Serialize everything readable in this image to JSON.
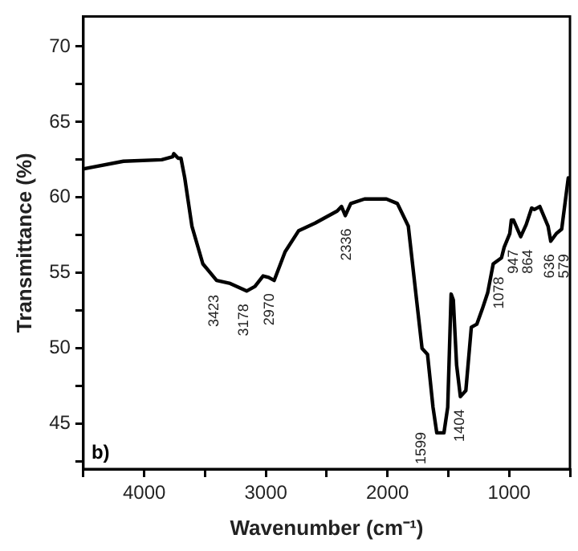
{
  "chart_data": {
    "type": "line",
    "xlabel": "Wavenumber (cm⁻¹)",
    "ylabel": "Transmittance (%)",
    "xlim": [
      4500,
      500
    ],
    "xticks": [
      {
        "value": 4500,
        "label": null
      },
      4000,
      {
        "value": 3500,
        "label": null
      },
      3000,
      {
        "value": 2500,
        "label": null
      },
      2000,
      {
        "value": 1500,
        "label": null
      },
      1000,
      {
        "value": 500,
        "label": null
      }
    ],
    "ylim": [
      42,
      72
    ],
    "yticks": [
      {
        "value": 42.5,
        "label": null
      },
      45,
      {
        "value": 47.5,
        "label": null
      },
      50,
      {
        "value": 52.5,
        "label": null
      },
      55,
      {
        "value": 57.5,
        "label": null
      },
      60,
      {
        "value": 62.5,
        "label": null
      },
      65,
      {
        "value": 67.5,
        "label": null
      },
      70
    ],
    "grid": false,
    "legend": false,
    "marker": "none",
    "line_style": "solid",
    "series": [
      {
        "color": "#000000",
        "x": [
          4495,
          4171,
          3856,
          3766,
          3757,
          3721,
          3698,
          3667,
          3608,
          3518,
          3405,
          3293,
          3158,
          3090,
          3023,
          2977,
          2932,
          2842,
          2730,
          2595,
          2414,
          2378,
          2347,
          2302,
          2189,
          2009,
          1919,
          1829,
          1761,
          1716,
          1671,
          1626,
          1595,
          1536,
          1505,
          1477,
          1459,
          1432,
          1401,
          1356,
          1311,
          1266,
          1221,
          1176,
          1131,
          1063,
          1041,
          995,
          982,
          964,
          905,
          860,
          815,
          793,
          748,
          680,
          658,
          613,
          568,
          514
        ],
        "values": [
          61.9,
          62.4,
          62.5,
          62.7,
          62.9,
          62.6,
          62.6,
          61.3,
          58.1,
          55.6,
          54.5,
          54.3,
          53.8,
          54.1,
          54.8,
          54.7,
          54.5,
          56.4,
          57.8,
          58.3,
          59.1,
          59.4,
          58.8,
          59.6,
          59.9,
          59.9,
          59.6,
          58.1,
          53.2,
          50.0,
          49.6,
          46.1,
          44.4,
          44.4,
          46.1,
          53.6,
          53.2,
          48.9,
          46.8,
          47.2,
          51.4,
          51.6,
          52.6,
          53.7,
          55.6,
          56.0,
          56.7,
          57.6,
          58.5,
          58.5,
          57.4,
          58.2,
          59.3,
          59.2,
          59.4,
          58.1,
          57.1,
          57.6,
          57.9,
          61.3
        ]
      }
    ],
    "annotations": [
      {
        "text": "3423",
        "x": 3423,
        "y": 54.4
      },
      {
        "text": "3178",
        "x": 3178,
        "y": 53.8
      },
      {
        "text": "2970",
        "x": 2970,
        "y": 54.7
      },
      {
        "text": "2336",
        "x": 2336,
        "y": 58.8
      },
      {
        "text": "1599",
        "x": 1599,
        "y": 44.4
      },
      {
        "text": "1404",
        "x": 1404,
        "y": 46.8
      },
      {
        "text": "1078",
        "x": 1078,
        "y": 56.0
      },
      {
        "text": "947",
        "x": 947,
        "y": 57.6
      },
      {
        "text": "864",
        "x": 864,
        "y": 58.2
      },
      {
        "text": "636",
        "x": 636,
        "y": 57.2
      },
      {
        "text": "579",
        "x": 579,
        "y": 57.9
      },
      "b)"
    ]
  }
}
